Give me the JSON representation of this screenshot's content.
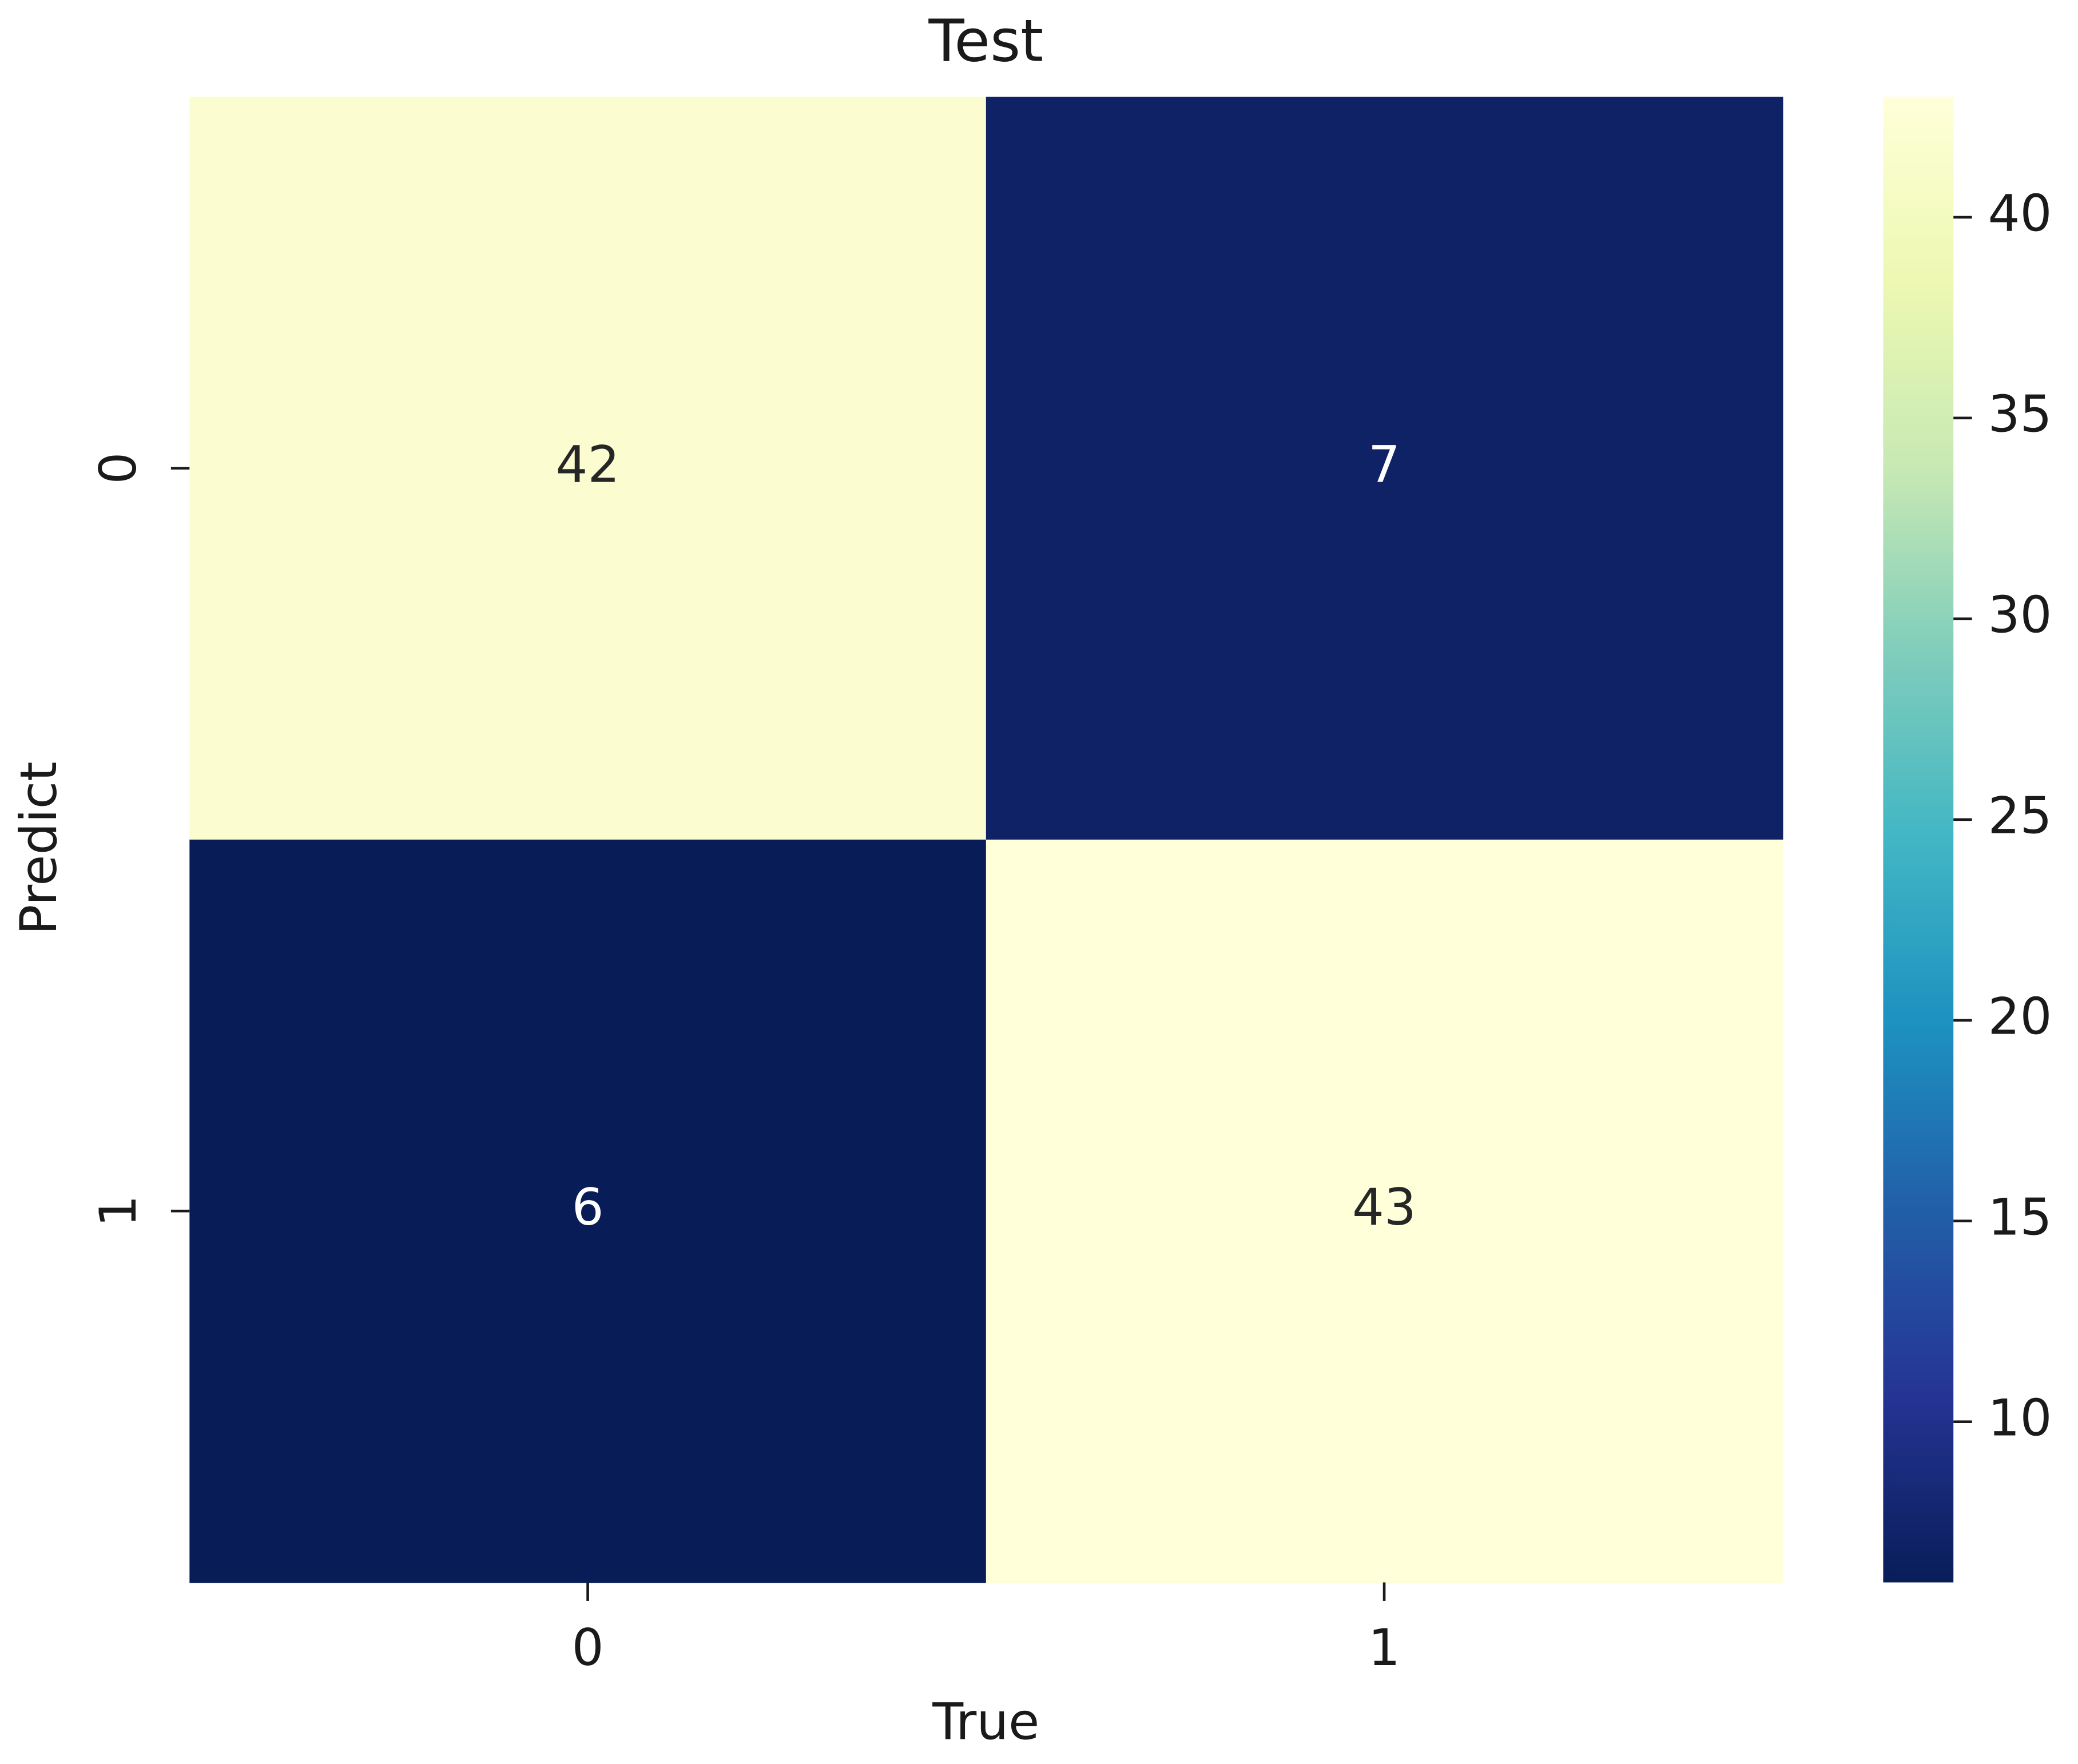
{
  "chart_data": {
    "type": "heatmap",
    "title": "Test",
    "xlabel": "True",
    "ylabel": "Predict",
    "x_categories": [
      "0",
      "1"
    ],
    "y_categories": [
      "0",
      "1"
    ],
    "values": [
      [
        42,
        7
      ],
      [
        6,
        43
      ]
    ],
    "colormap": "YlGnBu",
    "clim": [
      6,
      43
    ],
    "cticks": [
      10,
      15,
      20,
      25,
      30,
      35,
      40
    ]
  }
}
